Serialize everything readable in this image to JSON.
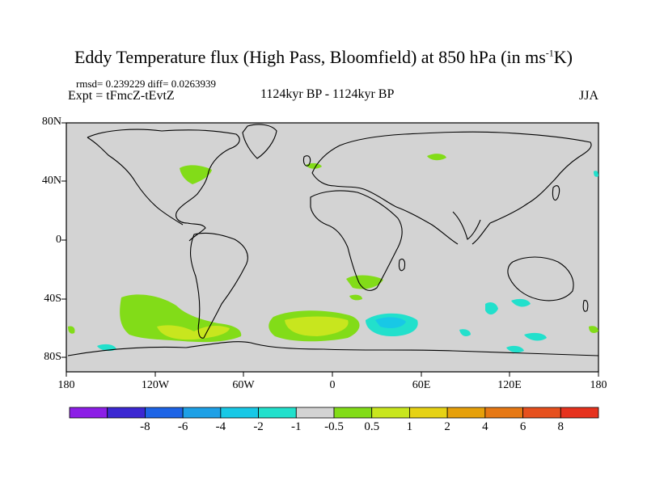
{
  "title": {
    "main": "Eddy Temperature flux (High Pass, Bloomfield) at 850 hPa (in ms",
    "sup": "-1",
    "tail": "K)"
  },
  "stats": "rmsd= 0.239229 diff= 0.0263939",
  "experiment": "Expt = tFmcZ-tEvtZ",
  "period": "1124kyr BP - 1124kyr BP",
  "season": "JJA",
  "map": {
    "lat_labels": [
      "80N",
      "40N",
      "0",
      "40S",
      "80S"
    ],
    "lon_labels": [
      "180",
      "120W",
      "60W",
      "0",
      "60E",
      "120E",
      "180"
    ],
    "background_color": "#d3d3d3",
    "coastline_color": "#000000"
  },
  "colorbar": {
    "colors": [
      "#8c1ee6",
      "#3c28d2",
      "#1e64e6",
      "#1ea0e6",
      "#18c8e6",
      "#22e0cc",
      "#d3d3d3",
      "#82dc18",
      "#c8e61e",
      "#e6d214",
      "#e6a00a",
      "#e67814",
      "#e6501e",
      "#e6321e"
    ],
    "labels": [
      "-8",
      "-6",
      "-4",
      "-2",
      "-1",
      "-0.5",
      "0.5",
      "1",
      "2",
      "4",
      "6",
      "8"
    ]
  }
}
